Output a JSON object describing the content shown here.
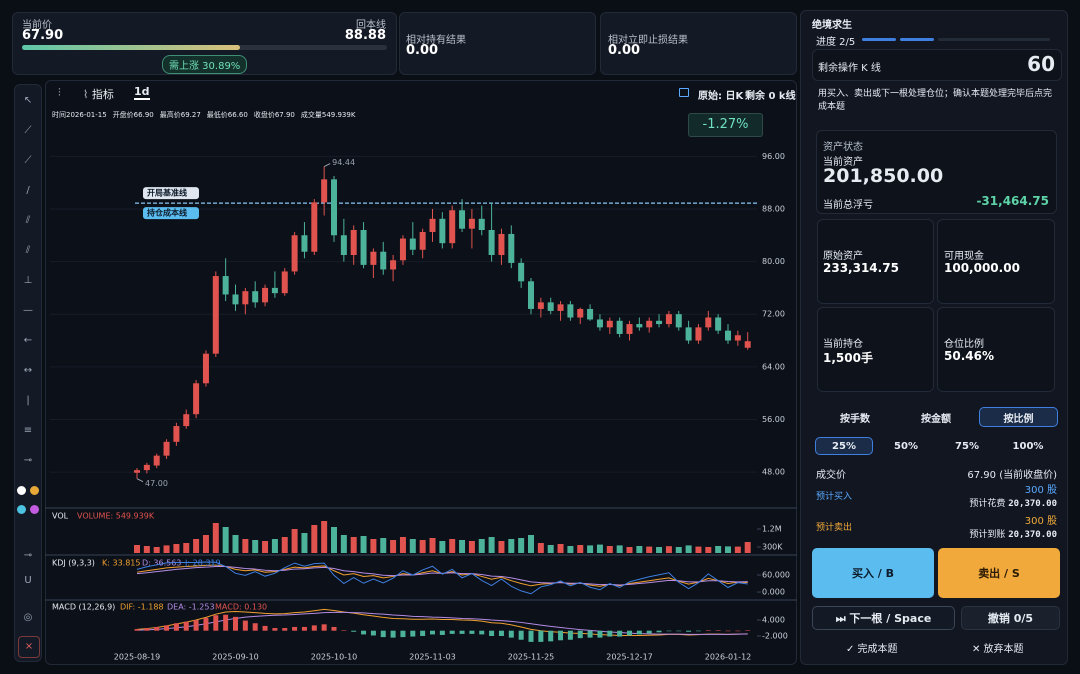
{
  "header": {
    "price_label": "当前价",
    "price": "67.90",
    "breakeven_label": "回本线",
    "breakeven": "88.88",
    "need_rise": "需上涨 30.89%",
    "hold_label": "相对持有结果",
    "hold": "0.00",
    "stop_label": "相对立即止损结果",
    "stop": "0.00"
  },
  "toolbar": {
    "tab_indicator": "指标",
    "tab_period": "1d",
    "source": "原始: 日K",
    "remaining": "剩余 0 k线"
  },
  "chart_data": {
    "type": "candlestick",
    "info": [
      "时间2026-01-15",
      "开盘价66.90",
      "最高价69.27",
      "最低价66.60",
      "收盘价67.90",
      "成交量549.939K"
    ],
    "change": "-1.27%",
    "categories": [
      "2025-08-19",
      null,
      null,
      null,
      null,
      null,
      null,
      null,
      null,
      null,
      "2025-09-10",
      null,
      null,
      null,
      null,
      null,
      null,
      null,
      null,
      null,
      "2025-10-10",
      null,
      null,
      null,
      null,
      null,
      null,
      null,
      null,
      null,
      "2025-11-03",
      null,
      null,
      null,
      null,
      null,
      null,
      null,
      null,
      null,
      "2025-11-25",
      null,
      null,
      null,
      null,
      null,
      null,
      null,
      null,
      null,
      "2025-12-17",
      null,
      null,
      null,
      null,
      null,
      null,
      null,
      null,
      null,
      "2026-01-12",
      null,
      null
    ],
    "candles": [
      [
        47.9,
        48.6,
        47.0,
        48.3
      ],
      [
        48.3,
        49.4,
        47.8,
        49.1
      ],
      [
        49.0,
        50.8,
        48.6,
        50.5
      ],
      [
        50.5,
        53.0,
        50.0,
        52.6
      ],
      [
        52.6,
        55.5,
        52.0,
        55.0
      ],
      [
        55.0,
        57.5,
        54.6,
        56.8
      ],
      [
        56.8,
        62.0,
        56.2,
        61.5
      ],
      [
        61.5,
        66.5,
        61.0,
        66.0
      ],
      [
        66.0,
        78.5,
        65.5,
        77.8
      ],
      [
        77.8,
        80.5,
        74.0,
        75.0
      ],
      [
        75.0,
        76.5,
        72.5,
        73.5
      ],
      [
        73.5,
        76.0,
        72.0,
        75.5
      ],
      [
        75.5,
        77.0,
        73.0,
        73.8
      ],
      [
        73.8,
        76.5,
        73.2,
        76.0
      ],
      [
        76.0,
        78.5,
        74.5,
        75.2
      ],
      [
        75.2,
        79.0,
        74.8,
        78.5
      ],
      [
        78.5,
        84.5,
        78.0,
        84.0
      ],
      [
        84.0,
        86.0,
        80.5,
        81.5
      ],
      [
        81.5,
        89.5,
        81.0,
        89.0
      ],
      [
        89.0,
        94.44,
        87.0,
        92.5
      ],
      [
        92.5,
        93.0,
        83.0,
        84.0
      ],
      [
        84.0,
        86.5,
        80.0,
        81.0
      ],
      [
        81.0,
        85.5,
        79.5,
        84.8
      ],
      [
        84.8,
        86.0,
        79.0,
        79.5
      ],
      [
        79.5,
        82.0,
        77.5,
        81.5
      ],
      [
        81.5,
        83.0,
        78.0,
        78.8
      ],
      [
        78.8,
        81.0,
        77.0,
        80.2
      ],
      [
        80.2,
        84.0,
        79.5,
        83.5
      ],
      [
        83.5,
        86.0,
        81.0,
        81.8
      ],
      [
        81.8,
        85.0,
        80.5,
        84.5
      ],
      [
        84.5,
        88.0,
        83.0,
        86.5
      ],
      [
        86.5,
        87.5,
        82.0,
        82.8
      ],
      [
        82.8,
        88.5,
        82.0,
        87.8
      ],
      [
        87.8,
        89.5,
        84.5,
        85.0
      ],
      [
        85.0,
        88.0,
        82.0,
        86.5
      ],
      [
        86.5,
        88.5,
        84.0,
        84.8
      ],
      [
        84.8,
        89.0,
        80.0,
        81.0
      ],
      [
        81.0,
        85.0,
        79.5,
        84.2
      ],
      [
        84.2,
        85.5,
        79.0,
        79.8
      ],
      [
        79.8,
        80.5,
        76.0,
        77.0
      ],
      [
        77.0,
        77.5,
        72.0,
        72.8
      ],
      [
        72.8,
        74.5,
        71.5,
        73.8
      ],
      [
        73.8,
        74.5,
        72.0,
        72.5
      ],
      [
        72.5,
        74.0,
        71.0,
        73.5
      ],
      [
        73.5,
        74.0,
        71.0,
        71.5
      ],
      [
        71.5,
        73.0,
        70.5,
        72.8
      ],
      [
        72.8,
        73.5,
        71.0,
        71.2
      ],
      [
        71.2,
        72.0,
        69.5,
        70.0
      ],
      [
        70.0,
        71.5,
        69.0,
        71.0
      ],
      [
        71.0,
        71.5,
        68.5,
        69.0
      ],
      [
        69.0,
        71.0,
        68.0,
        70.5
      ],
      [
        70.5,
        71.5,
        69.5,
        70.0
      ],
      [
        70.0,
        71.5,
        69.2,
        71.0
      ],
      [
        71.0,
        72.0,
        70.0,
        70.5
      ],
      [
        70.5,
        72.5,
        70.0,
        72.0
      ],
      [
        72.0,
        72.5,
        69.5,
        70.0
      ],
      [
        70.0,
        71.0,
        67.5,
        68.0
      ],
      [
        68.0,
        70.5,
        67.5,
        70.0
      ],
      [
        70.0,
        72.5,
        69.5,
        71.5
      ],
      [
        71.5,
        72.0,
        69.0,
        69.5
      ],
      [
        69.5,
        70.5,
        67.5,
        68.0
      ],
      [
        68.0,
        69.5,
        67.2,
        68.8
      ],
      [
        66.9,
        69.27,
        66.6,
        67.9
      ]
    ],
    "high_label": "94.44",
    "low_label": "47.00",
    "ylim": [
      43,
      100
    ],
    "yticks": [
      {
        "value": 48,
        "label": "48.00"
      },
      {
        "value": 56,
        "label": "56.00"
      },
      {
        "value": 64,
        "label": "64.00"
      },
      {
        "value": 72,
        "label": "72.00"
      },
      {
        "value": 80,
        "label": "80.00"
      },
      {
        "value": 88,
        "label": "88.00"
      },
      {
        "value": 96,
        "label": "96.00"
      }
    ],
    "grid": true,
    "up_color": "#e0534f",
    "down_color": "#4cb39a",
    "ref_lines": [
      {
        "value": 88.88,
        "label": "开局基准线"
      },
      {
        "value": 88.88,
        "label": "持仓成本线"
      }
    ],
    "volume": {
      "title": "VOL",
      "label": "VOLUME: 549.939K",
      "ylim": [
        0,
        2150000
      ],
      "yticks": [
        {
          "value": 300000,
          "label": "300K"
        },
        {
          "value": 1200000,
          "label": "1.2M"
        }
      ],
      "values": [
        400000,
        350000,
        300000,
        380000,
        450000,
        500000,
        700000,
        900000,
        1500000,
        1300000,
        900000,
        700000,
        650000,
        600000,
        700000,
        800000,
        1200000,
        1000000,
        1400000,
        1600000,
        1300000,
        900000,
        800000,
        850000,
        700000,
        750000,
        650000,
        800000,
        700000,
        650000,
        750000,
        600000,
        700000,
        650000,
        600000,
        700000,
        800000,
        600000,
        700000,
        750000,
        900000,
        500000,
        400000,
        450000,
        350000,
        400000,
        380000,
        420000,
        350000,
        380000,
        300000,
        350000,
        320000,
        300000,
        340000,
        300000,
        380000,
        320000,
        300000,
        350000,
        330000,
        320000,
        549939
      ]
    },
    "kdj": {
      "title": "KDJ (9,3,3)",
      "ylim": [
        -21,
        120
      ],
      "yticks": [
        {
          "value": 0,
          "label": "0.000"
        },
        {
          "value": 60,
          "label": "60.000"
        }
      ],
      "series": [
        {
          "name": "K: 33.815",
          "color": "#f0a030",
          "values": [
            70,
            75,
            80,
            85,
            88,
            90,
            92,
            94,
            95,
            90,
            80,
            75,
            78,
            70,
            72,
            80,
            88,
            85,
            90,
            92,
            75,
            60,
            65,
            55,
            58,
            50,
            55,
            65,
            60,
            68,
            75,
            65,
            72,
            60,
            65,
            55,
            45,
            52,
            40,
            30,
            22,
            28,
            30,
            35,
            28,
            32,
            25,
            20,
            28,
            22,
            30,
            35,
            40,
            45,
            50,
            38,
            28,
            35,
            48,
            40,
            30,
            35,
            33.815
          ]
        },
        {
          "name": "D: 36.563",
          "color": "#b48ce6",
          "values": [
            65,
            68,
            72,
            76,
            80,
            83,
            86,
            88,
            90,
            90,
            87,
            83,
            81,
            77,
            75,
            77,
            81,
            82,
            85,
            87,
            83,
            75,
            72,
            67,
            64,
            59,
            58,
            60,
            60,
            63,
            67,
            66,
            68,
            65,
            65,
            62,
            56,
            55,
            50,
            43,
            36,
            33,
            32,
            33,
            31,
            31,
            29,
            26,
            27,
            25,
            27,
            30,
            33,
            37,
            41,
            40,
            36,
            36,
            40,
            40,
            37,
            36,
            36.563
          ]
        },
        {
          "name": "J: 28.319",
          "color": "#3f7fe0",
          "values": [
            80,
            89,
            96,
            103,
            104,
            104,
            104,
            106,
            105,
            90,
            66,
            59,
            72,
            56,
            66,
            86,
            102,
            91,
            100,
            102,
            59,
            30,
            51,
            31,
            46,
            32,
            49,
            75,
            60,
            78,
            91,
            63,
            80,
            50,
            65,
            41,
            23,
            46,
            20,
            4,
            -6,
            18,
            26,
            39,
            22,
            34,
            17,
            8,
            30,
            16,
            36,
            45,
            54,
            61,
            68,
            34,
            12,
            33,
            64,
            40,
            16,
            33,
            28.319
          ]
        }
      ]
    },
    "macd": {
      "title": "MACD (12,26,9)",
      "ylim": [
        -6.5,
        10.4
      ],
      "yticks": [
        {
          "value": -2,
          "label": "-2.000"
        },
        {
          "value": 4,
          "label": "4.000"
        }
      ],
      "series": [
        {
          "name": "DIF: -1.188",
          "color": "#f0a030",
          "values": [
            0.5,
            0.8,
            1.2,
            1.8,
            2.5,
            3.2,
            4.0,
            5.0,
            6.2,
            7.0,
            7.2,
            7.0,
            6.8,
            6.5,
            6.3,
            6.4,
            6.8,
            7.0,
            7.5,
            8.0,
            7.6,
            7.0,
            6.6,
            6.0,
            5.5,
            5.0,
            4.6,
            4.5,
            4.3,
            4.3,
            4.4,
            4.2,
            4.2,
            4.0,
            3.9,
            3.6,
            3.0,
            2.8,
            2.2,
            1.4,
            0.5,
            0.0,
            -0.4,
            -0.6,
            -0.9,
            -1.0,
            -1.2,
            -1.5,
            -1.6,
            -1.8,
            -1.8,
            -1.8,
            -1.7,
            -1.6,
            -1.4,
            -1.4,
            -1.6,
            -1.5,
            -1.3,
            -1.3,
            -1.4,
            -1.3,
            -1.188
          ]
        },
        {
          "name": "DEA: -1.253",
          "color": "#b48ce6",
          "values": [
            0.2,
            0.3,
            0.5,
            0.8,
            1.1,
            1.5,
            2.0,
            2.6,
            3.3,
            4.0,
            4.6,
            5.1,
            5.4,
            5.6,
            5.8,
            5.9,
            6.1,
            6.3,
            6.5,
            6.8,
            6.9,
            6.9,
            6.8,
            6.7,
            6.4,
            6.2,
            5.9,
            5.7,
            5.4,
            5.3,
            5.1,
            5.0,
            4.8,
            4.6,
            4.5,
            4.3,
            4.0,
            3.8,
            3.5,
            3.1,
            2.6,
            2.1,
            1.6,
            1.2,
            0.8,
            0.4,
            0.1,
            -0.2,
            -0.5,
            -0.7,
            -0.9,
            -1.1,
            -1.2,
            -1.3,
            -1.3,
            -1.3,
            -1.4,
            -1.4,
            -1.4,
            -1.4,
            -1.4,
            -1.3,
            -1.253
          ]
        }
      ],
      "hist": {
        "name": "MACD: 0.130",
        "color": "#e0534f",
        "values": [
          0.6,
          1.0,
          1.4,
          2.0,
          2.8,
          3.4,
          4.0,
          4.8,
          5.8,
          6.0,
          5.2,
          3.8,
          2.8,
          1.8,
          1.0,
          1.0,
          1.4,
          1.4,
          2.0,
          2.4,
          1.4,
          0.2,
          -0.4,
          -1.4,
          -1.8,
          -2.4,
          -2.6,
          -2.4,
          -2.2,
          -2.0,
          -1.4,
          -1.6,
          -1.2,
          -1.2,
          -1.2,
          -1.4,
          -2.0,
          -2.0,
          -2.6,
          -3.4,
          -4.2,
          -4.2,
          -4.0,
          -3.6,
          -3.4,
          -2.8,
          -2.6,
          -2.6,
          -2.2,
          -2.2,
          -1.8,
          -1.4,
          -1.0,
          -0.6,
          -0.2,
          -0.2,
          -0.4,
          -0.2,
          0.2,
          0.2,
          0.0,
          0.0,
          0.13
        ]
      }
    }
  },
  "sidebar": {
    "title": "绝境求生",
    "progress": "进度 2/5",
    "remaining_label": "剩余操作 K 线",
    "remaining": "60",
    "instruction": "用买入、卖出或下一根处理仓位；确认本题处理完毕后点完成本题",
    "asset_title": "资产状态",
    "asset_label": "当前资产",
    "asset": "201,850.00",
    "pnl_label": "当前总浮亏",
    "pnl": "-31,464.75",
    "stats": [
      {
        "label": "原始资产",
        "value": "233,314.75"
      },
      {
        "label": "可用现金",
        "value": "100,000.00"
      },
      {
        "label": "当前持仓",
        "value": "1,500手"
      },
      {
        "label": "仓位比例",
        "value": "50.46%"
      }
    ],
    "modes": [
      "按手数",
      "按金额",
      "按比例"
    ],
    "ratios": [
      "25%",
      "50%",
      "75%",
      "100%"
    ],
    "price_label": "成交价",
    "price": "67.90 (当前收盘价)",
    "buy_label": "预计买入",
    "buy_qty": "300 股",
    "buy_cost_label": "预计花费",
    "buy_cost": "20,370.00",
    "sell_label": "预计卖出",
    "sell_qty": "300 股",
    "sell_cost_label": "预计到账",
    "sell_cost": "20,370.00",
    "buy_btn": "买入 / B",
    "sell_btn": "卖出 / S",
    "next_btn": "⏭ 下一根 / Space",
    "undo_btn": "撤销 0/5",
    "finish": "✓ 完成本题",
    "abandon": "✕ 放弃本题"
  }
}
